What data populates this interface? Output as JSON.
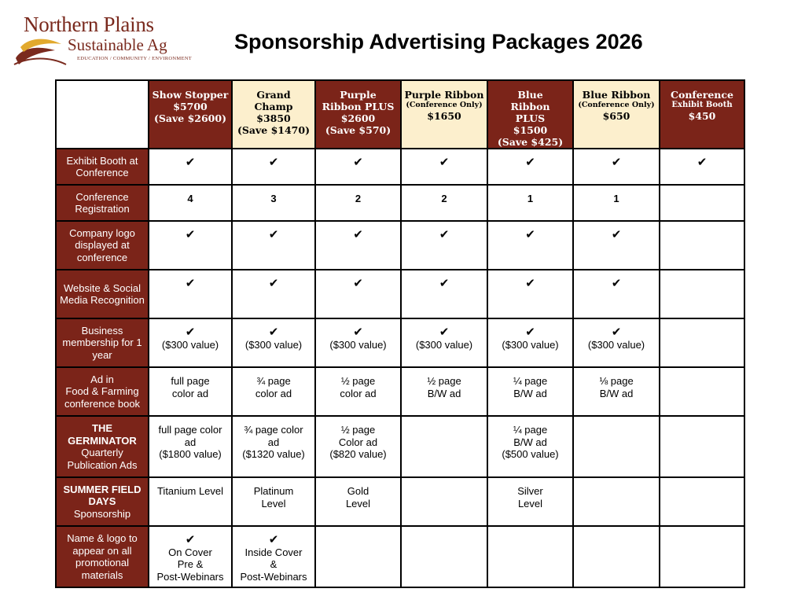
{
  "logo": {
    "line1": "Northern Plains",
    "line2": "Sustainable Ag",
    "tagline": "EDUCATION / COMMUNITY / ENVIRONMENT",
    "colors": {
      "text": "#7a2a1e",
      "leaf_dark": "#7a2a1e",
      "leaf_gold": "#e2a92d"
    }
  },
  "title": "Sponsorship Advertising Packages 2026",
  "colors": {
    "header_dark": "#7b2419",
    "header_light": "#fcefcd"
  },
  "packages": [
    {
      "name": "Show Stopper",
      "price": "$5700",
      "save": "(Save $2600)"
    },
    {
      "name": "Grand Champ",
      "price": "$3850",
      "save": "(Save $1470)"
    },
    {
      "name": "Purple Ribbon PLUS",
      "price": "$2600",
      "save": "(Save $570)"
    },
    {
      "name": "Purple Ribbon",
      "note": "(Conference Only)",
      "price": "$1650"
    },
    {
      "name": "Blue Ribbon PLUS",
      "price": "$1500",
      "save": "(Save $425)"
    },
    {
      "name": "Blue Ribbon",
      "note": "(Conference Only)",
      "price": "$650"
    },
    {
      "name": "Conference",
      "note": "Exhibit Booth",
      "price": "$450"
    }
  ],
  "rows": [
    {
      "label": "Exhibit Booth at Conference",
      "cells": [
        "✔",
        "✔",
        "✔",
        "✔",
        "✔",
        "✔",
        "✔"
      ]
    },
    {
      "label": "Conference Registration",
      "cells": [
        "4",
        "3",
        "2",
        "2",
        "1",
        "1",
        ""
      ]
    },
    {
      "label": "Company logo displayed at conference",
      "cells": [
        "✔",
        "✔",
        "✔",
        "✔",
        "✔",
        "✔",
        ""
      ]
    },
    {
      "label": "Website & Social Media Recognition",
      "cells": [
        "✔",
        "✔",
        "✔",
        "✔",
        "✔",
        "✔",
        ""
      ]
    },
    {
      "label": "Business membership for 1 year",
      "check": "✔",
      "value": "($300 value)"
    },
    {
      "label_line1": "Ad in",
      "label_line2": "Food & Farming",
      "label_line3": "conference book",
      "cells": [
        [
          "full page",
          "color ad"
        ],
        [
          "¾ page",
          "color ad"
        ],
        [
          "½ page",
          "color ad"
        ],
        [
          "½ page",
          "B/W ad"
        ],
        [
          "¼ page",
          "B/W ad"
        ],
        [
          "⅛ page",
          "B/W ad"
        ],
        []
      ]
    },
    {
      "label_bold": "THE GERMINATOR",
      "label_rest": "Quarterly Publication Ads",
      "cells": [
        [
          "full page color",
          "ad",
          "($1800 value)"
        ],
        [
          "¾ page color",
          "ad",
          "($1320 value)"
        ],
        [
          "½ page",
          "Color ad",
          "($820 value)"
        ],
        [],
        [
          "¼ page",
          "B/W ad",
          "($500 value)"
        ],
        [],
        []
      ]
    },
    {
      "label_bold": "SUMMER FIELD DAYS",
      "label_rest": "Sponsorship",
      "cells": [
        [
          "Titanium Level"
        ],
        [
          "Platinum",
          "Level"
        ],
        [
          "Gold",
          "Level"
        ],
        [],
        [
          "Silver",
          "Level"
        ],
        [],
        []
      ]
    },
    {
      "label": "Name & logo to appear on all promotional materials",
      "cells": [
        [
          "✔",
          "On Cover",
          "Pre &",
          "Post-Webinars"
        ],
        [
          "✔",
          "Inside Cover",
          "&",
          "Post-Webinars"
        ],
        [],
        [],
        [],
        [],
        []
      ]
    }
  ]
}
